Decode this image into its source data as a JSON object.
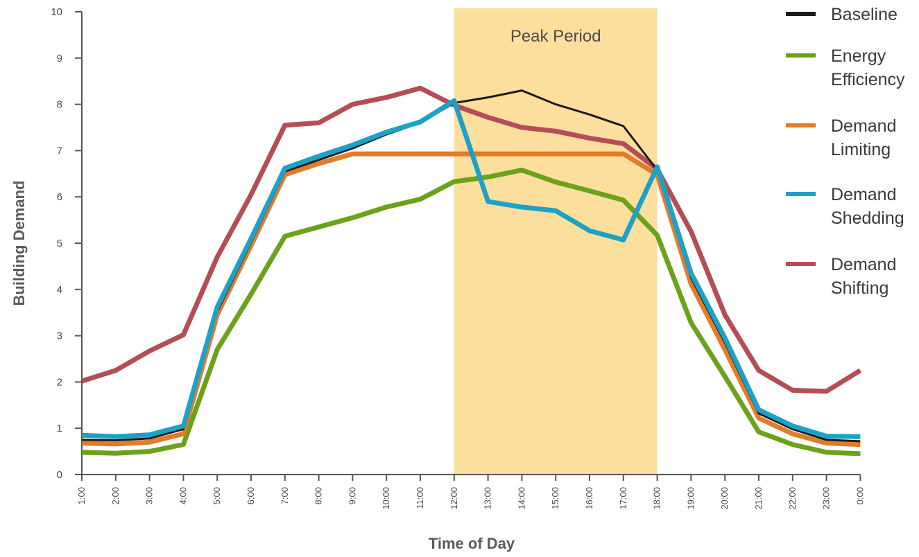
{
  "chart_data": {
    "type": "line",
    "title": "",
    "xlabel": "Time of Day",
    "ylabel": "Building Demand",
    "ylim": [
      0,
      10
    ],
    "yticks": [
      "0",
      "1",
      "2",
      "3",
      "4",
      "5",
      "6",
      "7",
      "8",
      "9",
      "10"
    ],
    "categories": [
      "1:00",
      "2:00",
      "3:00",
      "4:00",
      "5:00",
      "6:00",
      "7:00",
      "8:00",
      "9:00",
      "10:00",
      "11:00",
      "12:00",
      "13:00",
      "14:00",
      "15:00",
      "16:00",
      "17:00",
      "18:00",
      "19:00",
      "20:00",
      "21:00",
      "22:00",
      "23:00",
      "0:00"
    ],
    "shaded_region": {
      "label": "Peak Period",
      "from": "12:00",
      "to": "18:00",
      "color": "#fddf9d"
    },
    "grid": false,
    "legend_position": "right",
    "series": [
      {
        "name": "Energy\nEfficiency",
        "color": "#6ba21a",
        "values": [
          0.48,
          0.46,
          0.5,
          0.65,
          2.7,
          3.9,
          5.15,
          5.35,
          5.55,
          5.78,
          5.95,
          6.33,
          6.43,
          6.58,
          6.32,
          6.13,
          5.93,
          5.17,
          3.28,
          2.12,
          0.92,
          0.65,
          0.48,
          0.45
        ]
      },
      {
        "name": "Demand\nLimiting",
        "color": "#e27b2a",
        "values": [
          0.68,
          0.66,
          0.7,
          0.88,
          3.45,
          4.95,
          6.48,
          6.72,
          6.93,
          6.93,
          6.93,
          6.93,
          6.93,
          6.93,
          6.93,
          6.93,
          6.93,
          6.48,
          4.12,
          2.7,
          1.22,
          0.88,
          0.68,
          0.65
        ]
      },
      {
        "name": "Demand\nShifting",
        "color": "#b54d57",
        "values": [
          2.02,
          2.25,
          2.67,
          3.02,
          4.7,
          6.05,
          7.55,
          7.6,
          8.0,
          8.15,
          8.35,
          7.98,
          7.72,
          7.5,
          7.42,
          7.27,
          7.15,
          6.6,
          5.25,
          3.45,
          2.25,
          1.82,
          1.8,
          2.25
        ]
      },
      {
        "name": "Baseline",
        "color": "#1a1a1a",
        "values": [
          0.75,
          0.74,
          0.78,
          0.98,
          3.52,
          5.02,
          6.55,
          6.8,
          7.05,
          7.35,
          7.6,
          8.03,
          8.15,
          8.3,
          8.0,
          7.78,
          7.53,
          6.58,
          4.25,
          2.85,
          1.32,
          0.98,
          0.75,
          0.72
        ]
      },
      {
        "name": "Demand\nShedding",
        "color": "#1ea1c6",
        "values": [
          0.85,
          0.82,
          0.86,
          1.05,
          3.62,
          5.1,
          6.62,
          6.88,
          7.12,
          7.4,
          7.62,
          8.08,
          5.9,
          5.78,
          5.7,
          5.27,
          5.07,
          6.65,
          4.35,
          2.95,
          1.4,
          1.05,
          0.83,
          0.82
        ]
      }
    ],
    "legend_order": [
      3,
      0,
      1,
      4,
      2
    ]
  }
}
